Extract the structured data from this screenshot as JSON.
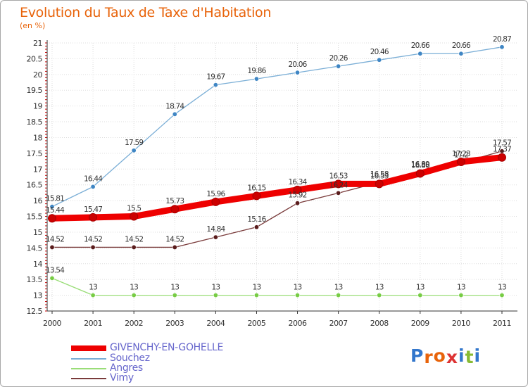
{
  "title": "Evolution du Taux de Taxe d'Habitation",
  "subtitle": "(en %)",
  "colors": {
    "title": "#e8630a",
    "grid": "#dddddd",
    "axis": "#333333",
    "tick_mark": "#cc0000",
    "label": "#333333"
  },
  "chart_data": {
    "type": "line",
    "x": [
      "2000",
      "2001",
      "2002",
      "2003",
      "2004",
      "2005",
      "2006",
      "2007",
      "2008",
      "2009",
      "2010",
      "2011"
    ],
    "ylim": [
      12.5,
      21
    ],
    "yticks": [
      "12.5",
      "13",
      "13.5",
      "14",
      "14.5",
      "15",
      "15.5",
      "16",
      "16.5",
      "17",
      "17.5",
      "18",
      "18.5",
      "19",
      "19.5",
      "20",
      "20.5",
      "21"
    ],
    "grid": true,
    "legend_position": "bottom-left",
    "series": [
      {
        "name": "GIVENCHY-EN-GOHELLE",
        "color": "#ee0000",
        "marker_color": "#cc0000",
        "values": [
          15.44,
          15.47,
          15.5,
          15.73,
          15.96,
          16.15,
          16.34,
          16.53,
          16.53,
          16.86,
          17.23,
          17.37
        ],
        "labels": [
          "15.44",
          "15.47",
          "15.5",
          "15.73",
          "15.96",
          "16.15",
          "16.34",
          "16.53",
          "16.53",
          "16.86",
          "17.23",
          "17.37"
        ]
      },
      {
        "name": "Souchez",
        "color": "#7aaed6",
        "marker_color": "#3f86c4",
        "values": [
          15.81,
          16.44,
          17.59,
          18.74,
          19.67,
          19.86,
          20.06,
          20.26,
          20.46,
          20.66,
          20.66,
          20.87
        ],
        "labels": [
          "15.81",
          "16.44",
          "17.59",
          "18.74",
          "19.67",
          "19.86",
          "20.06",
          "20.26",
          "20.46",
          "20.66",
          "20.66",
          "20.87"
        ]
      },
      {
        "name": "Angres",
        "color": "#99dd77",
        "marker_color": "#77cc44",
        "values": [
          13.54,
          13,
          13,
          13,
          13,
          13,
          13,
          13,
          13,
          13,
          13,
          13
        ],
        "labels": [
          "13.54",
          "13",
          "13",
          "13",
          "13",
          "13",
          "13",
          "13",
          "13",
          "13",
          "13",
          "13"
        ]
      },
      {
        "name": "Vimy",
        "color": "#7a3b3b",
        "marker_color": "#5a1c1c",
        "values": [
          14.52,
          14.52,
          14.52,
          14.52,
          14.84,
          15.16,
          15.92,
          16.24,
          16.58,
          16.89,
          17.2,
          17.57
        ],
        "labels": [
          "14.52",
          "14.52",
          "14.52",
          "14.52",
          "14.84",
          "15.16",
          "15.92",
          "16.24",
          "16.58",
          "16.89",
          "17.2",
          "17.57"
        ]
      }
    ]
  },
  "logo": {
    "letters": [
      "P",
      "r",
      "o",
      "x",
      "i",
      "t",
      "i"
    ],
    "colors": [
      "#3377cc",
      "#e8630a",
      "#e8630a",
      "#dd3333",
      "#3377cc",
      "#88bb33",
      "#3377cc"
    ]
  }
}
